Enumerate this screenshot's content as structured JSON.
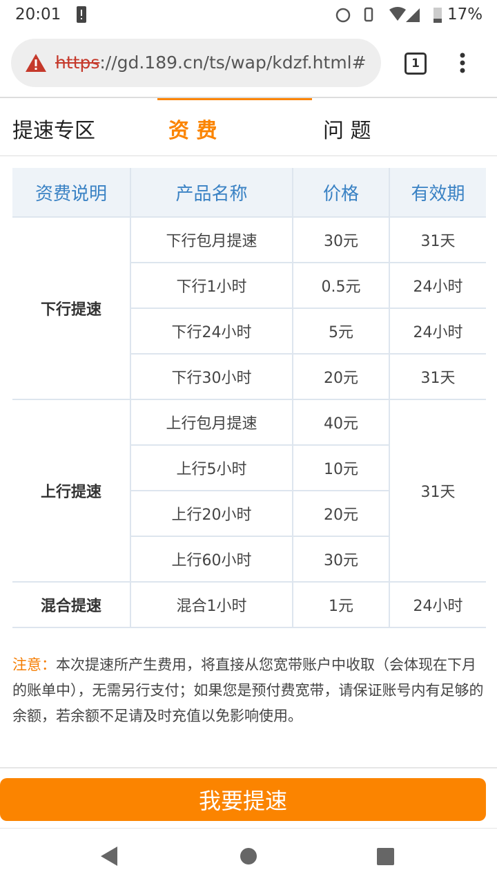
{
  "status": {
    "time": "20:01",
    "battery": "17%"
  },
  "browser": {
    "url_scheme": "https",
    "url_rest": "://gd.189.cn/ts/wap/kdzf.html#",
    "tab_count": "1"
  },
  "tabs": [
    "提速专区",
    "资 费",
    "问 题"
  ],
  "table": {
    "header": [
      "资费说明",
      "产品名称",
      "价格",
      "有效期"
    ],
    "groups": [
      {
        "label": "下行提速",
        "rows": [
          [
            "下行包月提速",
            "30元",
            "31天"
          ],
          [
            "下行1小时",
            "0.5元",
            "24小时"
          ],
          [
            "下行24小时",
            "5元",
            "24小时"
          ],
          [
            "下行30小时",
            "20元",
            "31天"
          ]
        ]
      },
      {
        "label": "上行提速",
        "validity": "31天",
        "rows": [
          [
            "上行包月提速",
            "40元"
          ],
          [
            "上行5小时",
            "10元"
          ],
          [
            "上行20小时",
            "20元"
          ],
          [
            "上行60小时",
            "30元"
          ]
        ]
      },
      {
        "label": "混合提速",
        "rows": [
          [
            "混合1小时",
            "1元",
            "24小时"
          ]
        ]
      }
    ]
  },
  "note": {
    "label": "注意：",
    "text": "本次提速所产生费用，将直接从您宽带账户中收取（会体现在下月的账单中），无需另行支付；如果您是预付费宽带，请保证账号内有足够的余额，若余额不足请及时充值以免影响使用。"
  },
  "button": "我要提速"
}
